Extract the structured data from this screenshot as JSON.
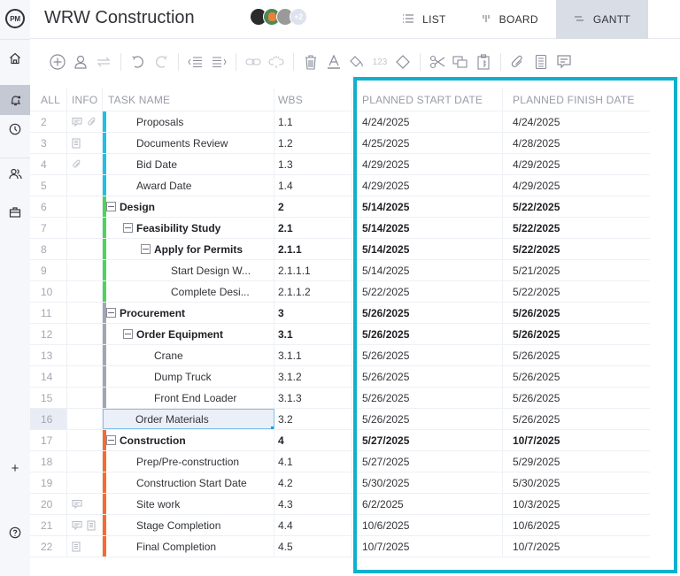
{
  "app": {
    "logo": "PM",
    "project_title": "WRW Construction",
    "avatars": [
      {
        "name": "member-1",
        "color": "#2b2b2b"
      },
      {
        "name": "member-2",
        "color": "#4a8a57"
      },
      {
        "name": "member-3",
        "color": "#8f8f8f"
      }
    ],
    "avatars_more": "+2"
  },
  "sidebar": {
    "items": [
      {
        "icon": "home-icon"
      },
      {
        "icon": "notification-bell-icon",
        "active": true
      },
      {
        "icon": "clock-icon"
      },
      {
        "icon": "people-icon"
      },
      {
        "icon": "briefcase-icon"
      },
      {
        "icon": "plus-icon",
        "label": "+"
      },
      {
        "icon": "help-icon",
        "label": "?"
      }
    ]
  },
  "views": [
    {
      "label": "LIST",
      "icon": "list-icon"
    },
    {
      "label": "BOARD",
      "icon": "board-icon"
    },
    {
      "label": "GANTT",
      "icon": "gantt-icon",
      "active": true
    }
  ],
  "toolbar": {
    "number_format_label": "123"
  },
  "grid": {
    "columns": {
      "all": "ALL",
      "info": "INFO",
      "task": "TASK NAME",
      "wbs": "WBS",
      "start": "PLANNED START DATE",
      "finish": "PLANNED FINISH DATE"
    },
    "rows": [
      {
        "num": "2",
        "info": [
          "comment",
          "attachment"
        ],
        "name": "Proposals",
        "wbs": "1.1",
        "start": "4/24/2025",
        "finish": "4/24/2025",
        "indent": 38,
        "color": "#1ec0e8",
        "bold": false
      },
      {
        "num": "3",
        "info": [
          "note"
        ],
        "name": "Documents Review",
        "wbs": "1.2",
        "start": "4/25/2025",
        "finish": "4/28/2025",
        "indent": 38,
        "color": "#1ec0e8",
        "bold": false
      },
      {
        "num": "4",
        "info": [
          "attachment"
        ],
        "name": "Bid Date",
        "wbs": "1.3",
        "start": "4/29/2025",
        "finish": "4/29/2025",
        "indent": 38,
        "color": "#1ec0e8",
        "bold": false
      },
      {
        "num": "5",
        "info": [],
        "name": "Award Date",
        "wbs": "1.4",
        "start": "4/29/2025",
        "finish": "4/29/2025",
        "indent": 38,
        "color": "#1ec0e8",
        "bold": false
      },
      {
        "num": "6",
        "info": [],
        "name": "Design",
        "wbs": "2",
        "start": "5/14/2025",
        "finish": "5/22/2025",
        "indent": 4,
        "color": "#4cd35a",
        "bold": true,
        "toggle": true
      },
      {
        "num": "7",
        "info": [],
        "name": "Feasibility Study",
        "wbs": "2.1",
        "start": "5/14/2025",
        "finish": "5/22/2025",
        "indent": 23,
        "color": "#4cd35a",
        "bold": true,
        "toggle": true
      },
      {
        "num": "8",
        "info": [],
        "name": "Apply for Permits",
        "wbs": "2.1.1",
        "start": "5/14/2025",
        "finish": "5/22/2025",
        "indent": 43,
        "color": "#4cd35a",
        "bold": true,
        "toggle": true
      },
      {
        "num": "9",
        "info": [],
        "name": "Start Design W...",
        "wbs": "2.1.1.1",
        "start": "5/14/2025",
        "finish": "5/21/2025",
        "indent": 77,
        "color": "#4cd35a",
        "bold": false
      },
      {
        "num": "10",
        "info": [],
        "name": "Complete Desi...",
        "wbs": "2.1.1.2",
        "start": "5/22/2025",
        "finish": "5/22/2025",
        "indent": 77,
        "color": "#4cd35a",
        "bold": false
      },
      {
        "num": "11",
        "info": [],
        "name": "Procurement",
        "wbs": "3",
        "start": "5/26/2025",
        "finish": "5/26/2025",
        "indent": 4,
        "color": "#a3a5b2",
        "bold": true,
        "toggle": true
      },
      {
        "num": "12",
        "info": [],
        "name": "Order Equipment",
        "wbs": "3.1",
        "start": "5/26/2025",
        "finish": "5/26/2025",
        "indent": 23,
        "color": "#a3a5b2",
        "bold": true,
        "toggle": true
      },
      {
        "num": "13",
        "info": [],
        "name": "Crane",
        "wbs": "3.1.1",
        "start": "5/26/2025",
        "finish": "5/26/2025",
        "indent": 58,
        "color": "#a3a5b2",
        "bold": false
      },
      {
        "num": "14",
        "info": [],
        "name": "Dump Truck",
        "wbs": "3.1.2",
        "start": "5/26/2025",
        "finish": "5/26/2025",
        "indent": 58,
        "color": "#a3a5b2",
        "bold": false
      },
      {
        "num": "15",
        "info": [],
        "name": "Front End Loader",
        "wbs": "3.1.3",
        "start": "5/26/2025",
        "finish": "5/26/2025",
        "indent": 58,
        "color": "#a3a5b2",
        "bold": false
      },
      {
        "num": "16",
        "info": [],
        "name": "Order Materials",
        "wbs": "3.2",
        "start": "5/26/2025",
        "finish": "5/26/2025",
        "indent": 37,
        "color": "",
        "bold": false,
        "selected": true
      },
      {
        "num": "17",
        "info": [],
        "name": "Construction",
        "wbs": "4",
        "start": "5/27/2025",
        "finish": "10/7/2025",
        "indent": 4,
        "color": "#fb6a2b",
        "bold": true,
        "toggle": true
      },
      {
        "num": "18",
        "info": [],
        "name": "Prep/Pre-construction",
        "wbs": "4.1",
        "start": "5/27/2025",
        "finish": "5/29/2025",
        "indent": 38,
        "color": "#fb6a2b",
        "bold": false
      },
      {
        "num": "19",
        "info": [],
        "name": "Construction Start Date",
        "wbs": "4.2",
        "start": "5/30/2025",
        "finish": "5/30/2025",
        "indent": 38,
        "color": "#fb6a2b",
        "bold": false
      },
      {
        "num": "20",
        "info": [
          "comment"
        ],
        "name": "Site work",
        "wbs": "4.3",
        "start": "6/2/2025",
        "finish": "10/3/2025",
        "indent": 38,
        "color": "#fb6a2b",
        "bold": false
      },
      {
        "num": "21",
        "info": [
          "comment",
          "note"
        ],
        "name": "Stage Completion",
        "wbs": "4.4",
        "start": "10/6/2025",
        "finish": "10/6/2025",
        "indent": 38,
        "color": "#fb6a2b",
        "bold": false
      },
      {
        "num": "22",
        "info": [
          "note"
        ],
        "name": "Final Completion",
        "wbs": "4.5",
        "start": "10/7/2025",
        "finish": "10/7/2025",
        "indent": 38,
        "color": "#fb6a2b",
        "bold": false
      }
    ]
  },
  "colors": {
    "highlight_border": "#0fb0d0",
    "selection_border": "#7fc1ea",
    "selection_handle": "#1e9ef2",
    "active_view_bg": "#d9dde6"
  }
}
